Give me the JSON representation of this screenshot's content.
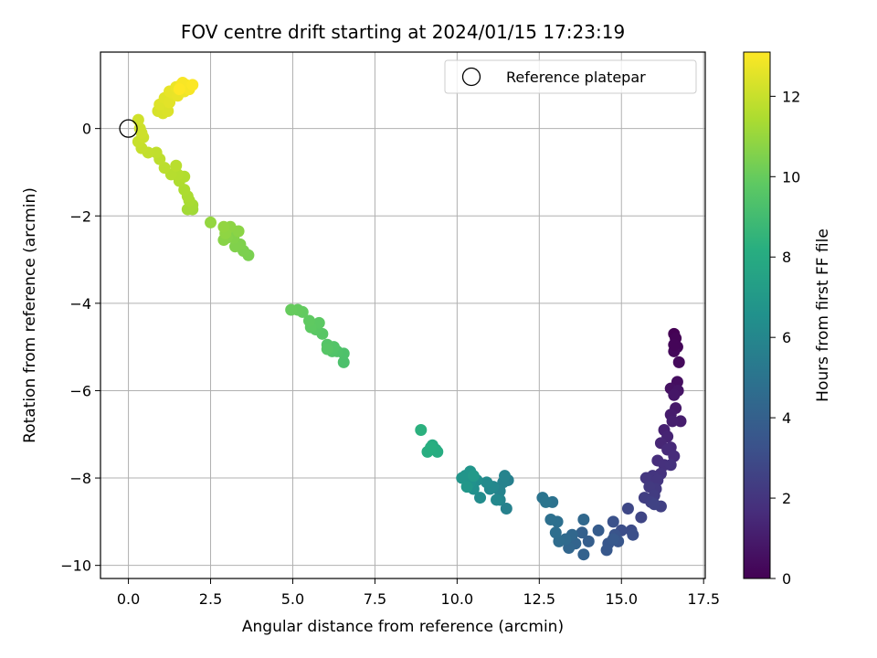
{
  "chart_data": {
    "type": "scatter",
    "title": "FOV centre drift starting at 2024/01/15 17:23:19",
    "xlabel": "Angular distance from reference (arcmin)",
    "ylabel": "Rotation from reference (arcmin)",
    "xlim": [
      -0.85,
      17.55
    ],
    "ylim": [
      -10.3,
      1.75
    ],
    "xticks": [
      0,
      2.5,
      5,
      7.5,
      10,
      12.5,
      15,
      17.5
    ],
    "xtick_labels": [
      "0.0",
      "2.5",
      "5.0",
      "7.5",
      "10.0",
      "12.5",
      "15.0",
      "17.5"
    ],
    "yticks": [
      0,
      -2,
      -4,
      -6,
      -8,
      -10
    ],
    "ytick_labels": [
      "0",
      "−2",
      "−4",
      "−6",
      "−8",
      "−10"
    ],
    "grid": true,
    "legend": {
      "position": "top-right",
      "entries": [
        "Reference platepar"
      ]
    },
    "reference_point": {
      "x": 0.0,
      "y": 0.0
    },
    "colorbar": {
      "label": "Hours from first FF file",
      "range": [
        0,
        13.1
      ],
      "ticks": [
        0,
        2,
        4,
        6,
        8,
        10,
        12
      ],
      "tick_labels": [
        "0",
        "2",
        "4",
        "6",
        "8",
        "10",
        "12"
      ],
      "colormap": "viridis"
    },
    "points": [
      [
        16.6,
        -4.7,
        0.0
      ],
      [
        16.65,
        -4.8,
        0.1
      ],
      [
        16.7,
        -5.0,
        0.2
      ],
      [
        16.6,
        -5.1,
        0.25
      ],
      [
        16.75,
        -5.35,
        0.35
      ],
      [
        16.6,
        -4.95,
        0.15
      ],
      [
        16.7,
        -5.8,
        0.5
      ],
      [
        16.5,
        -5.95,
        0.6
      ],
      [
        16.72,
        -6.0,
        0.7
      ],
      [
        16.6,
        -6.1,
        0.8
      ],
      [
        16.65,
        -6.4,
        0.9
      ],
      [
        16.5,
        -6.55,
        1.0
      ],
      [
        16.8,
        -6.7,
        1.05
      ],
      [
        16.55,
        -6.7,
        1.1
      ],
      [
        16.3,
        -6.9,
        1.2
      ],
      [
        16.4,
        -7.05,
        1.3
      ],
      [
        16.2,
        -7.2,
        1.4
      ],
      [
        16.5,
        -7.3,
        1.5
      ],
      [
        16.4,
        -7.35,
        1.55
      ],
      [
        16.6,
        -7.5,
        1.6
      ],
      [
        16.1,
        -7.6,
        1.7
      ],
      [
        16.3,
        -7.7,
        1.8
      ],
      [
        16.5,
        -7.7,
        1.85
      ],
      [
        16.2,
        -7.9,
        1.9
      ],
      [
        15.95,
        -7.95,
        2.0
      ],
      [
        16.1,
        -8.05,
        2.05
      ],
      [
        15.75,
        -8.0,
        2.1
      ],
      [
        16.05,
        -8.25,
        2.15
      ],
      [
        15.85,
        -8.2,
        2.2
      ],
      [
        16.0,
        -8.4,
        2.3
      ],
      [
        15.7,
        -8.45,
        2.4
      ],
      [
        15.9,
        -8.55,
        2.45
      ],
      [
        16.2,
        -8.65,
        2.5
      ],
      [
        16.0,
        -8.6,
        2.55
      ],
      [
        15.6,
        -8.9,
        2.7
      ],
      [
        15.2,
        -8.7,
        2.8
      ],
      [
        15.3,
        -9.2,
        3.0
      ],
      [
        15.0,
        -9.2,
        3.1
      ],
      [
        15.35,
        -9.3,
        3.2
      ],
      [
        14.75,
        -9.0,
        3.3
      ],
      [
        14.8,
        -9.3,
        3.4
      ],
      [
        14.9,
        -9.45,
        3.5
      ],
      [
        14.6,
        -9.5,
        3.55
      ],
      [
        14.55,
        -9.65,
        3.6
      ],
      [
        14.75,
        -9.4,
        3.65
      ],
      [
        14.3,
        -9.2,
        3.8
      ],
      [
        14.0,
        -9.45,
        3.9
      ],
      [
        13.8,
        -9.25,
        4.0
      ],
      [
        13.85,
        -9.75,
        4.1
      ],
      [
        13.6,
        -9.5,
        4.2
      ],
      [
        13.4,
        -9.6,
        4.3
      ],
      [
        13.5,
        -9.3,
        4.35
      ],
      [
        13.85,
        -8.95,
        4.4
      ],
      [
        13.3,
        -9.4,
        4.5
      ],
      [
        13.1,
        -9.45,
        4.6
      ],
      [
        13.0,
        -9.25,
        4.7
      ],
      [
        13.05,
        -9.0,
        4.75
      ],
      [
        12.85,
        -8.95,
        4.8
      ],
      [
        12.9,
        -8.55,
        4.9
      ],
      [
        12.6,
        -8.45,
        5.0
      ],
      [
        12.7,
        -8.55,
        5.05
      ],
      [
        11.55,
        -8.05,
        5.6
      ],
      [
        11.5,
        -8.7,
        5.7
      ],
      [
        11.4,
        -8.1,
        5.75
      ],
      [
        11.3,
        -8.3,
        5.8
      ],
      [
        11.45,
        -7.95,
        5.85
      ],
      [
        11.3,
        -8.5,
        5.9
      ],
      [
        11.1,
        -8.2,
        6.0
      ],
      [
        11.2,
        -8.5,
        6.05
      ],
      [
        11.0,
        -8.25,
        6.1
      ],
      [
        10.9,
        -8.1,
        6.2
      ],
      [
        10.7,
        -8.45,
        6.3
      ],
      [
        10.6,
        -8.05,
        6.4
      ],
      [
        10.5,
        -8.25,
        6.5
      ],
      [
        10.4,
        -8.1,
        6.6
      ],
      [
        10.25,
        -7.95,
        6.7
      ],
      [
        10.4,
        -7.85,
        6.75
      ],
      [
        10.15,
        -8.0,
        6.8
      ],
      [
        10.3,
        -8.2,
        6.9
      ],
      [
        10.5,
        -7.95,
        7.0
      ],
      [
        9.35,
        -7.35,
        7.9
      ],
      [
        9.25,
        -7.25,
        8.0
      ],
      [
        9.4,
        -7.4,
        8.1
      ],
      [
        9.1,
        -7.4,
        8.15
      ],
      [
        9.2,
        -7.3,
        8.2
      ],
      [
        8.9,
        -6.9,
        8.3
      ],
      [
        6.55,
        -5.35,
        9.3
      ],
      [
        6.55,
        -5.15,
        9.35
      ],
      [
        6.35,
        -5.1,
        9.4
      ],
      [
        6.2,
        -5.1,
        9.45
      ],
      [
        6.25,
        -5.0,
        9.5
      ],
      [
        6.05,
        -4.95,
        9.55
      ],
      [
        6.05,
        -5.05,
        9.6
      ],
      [
        5.9,
        -4.7,
        9.65
      ],
      [
        5.7,
        -4.6,
        9.7
      ],
      [
        5.8,
        -4.45,
        9.75
      ],
      [
        5.55,
        -4.55,
        9.8
      ],
      [
        5.5,
        -4.4,
        9.85
      ],
      [
        5.3,
        -4.2,
        9.9
      ],
      [
        5.15,
        -4.15,
        9.95
      ],
      [
        4.95,
        -4.15,
        10.0
      ],
      [
        3.65,
        -2.9,
        10.4
      ],
      [
        3.5,
        -2.8,
        10.45
      ],
      [
        3.4,
        -2.65,
        10.5
      ],
      [
        3.25,
        -2.7,
        10.55
      ],
      [
        3.2,
        -2.5,
        10.6
      ],
      [
        3.0,
        -2.5,
        10.65
      ],
      [
        2.9,
        -2.55,
        10.7
      ],
      [
        3.35,
        -2.35,
        10.75
      ],
      [
        3.1,
        -2.25,
        10.8
      ],
      [
        2.95,
        -2.4,
        10.85
      ],
      [
        2.9,
        -2.25,
        10.9
      ],
      [
        2.5,
        -2.15,
        10.95
      ],
      [
        1.95,
        -1.85,
        11.2
      ],
      [
        1.8,
        -1.85,
        11.25
      ],
      [
        1.95,
        -1.75,
        11.3
      ],
      [
        1.85,
        -1.65,
        11.35
      ],
      [
        1.8,
        -1.55,
        11.4
      ],
      [
        1.7,
        -1.4,
        11.45
      ],
      [
        1.55,
        -1.2,
        11.5
      ],
      [
        1.7,
        -1.1,
        11.55
      ],
      [
        1.5,
        -1.05,
        11.6
      ],
      [
        1.3,
        -1.05,
        11.65
      ],
      [
        1.45,
        -0.85,
        11.7
      ],
      [
        1.1,
        -0.9,
        11.75
      ],
      [
        0.95,
        -0.7,
        11.8
      ],
      [
        0.85,
        -0.55,
        11.85
      ],
      [
        0.6,
        -0.55,
        11.9
      ],
      [
        0.4,
        -0.45,
        11.95
      ],
      [
        0.3,
        -0.3,
        12.0
      ],
      [
        0.45,
        -0.2,
        12.05
      ],
      [
        0.35,
        0.0,
        12.1
      ],
      [
        0.4,
        -0.1,
        12.12
      ],
      [
        0.3,
        0.2,
        12.15
      ],
      [
        0.9,
        0.4,
        12.3
      ],
      [
        1.05,
        0.35,
        12.35
      ],
      [
        1.2,
        0.4,
        12.4
      ],
      [
        0.95,
        0.55,
        12.45
      ],
      [
        1.1,
        0.7,
        12.5
      ],
      [
        1.25,
        0.6,
        12.55
      ],
      [
        1.35,
        0.8,
        12.6
      ],
      [
        1.25,
        0.85,
        12.65
      ],
      [
        1.5,
        0.75,
        12.7
      ],
      [
        1.45,
        0.95,
        12.75
      ],
      [
        1.7,
        0.85,
        12.8
      ],
      [
        1.6,
        1.0,
        12.85
      ],
      [
        1.75,
        1.0,
        12.9
      ],
      [
        1.85,
        0.9,
        12.95
      ],
      [
        1.65,
        1.05,
        13.0
      ],
      [
        1.95,
        1.0,
        13.05
      ],
      [
        1.55,
        0.9,
        13.1
      ]
    ]
  }
}
